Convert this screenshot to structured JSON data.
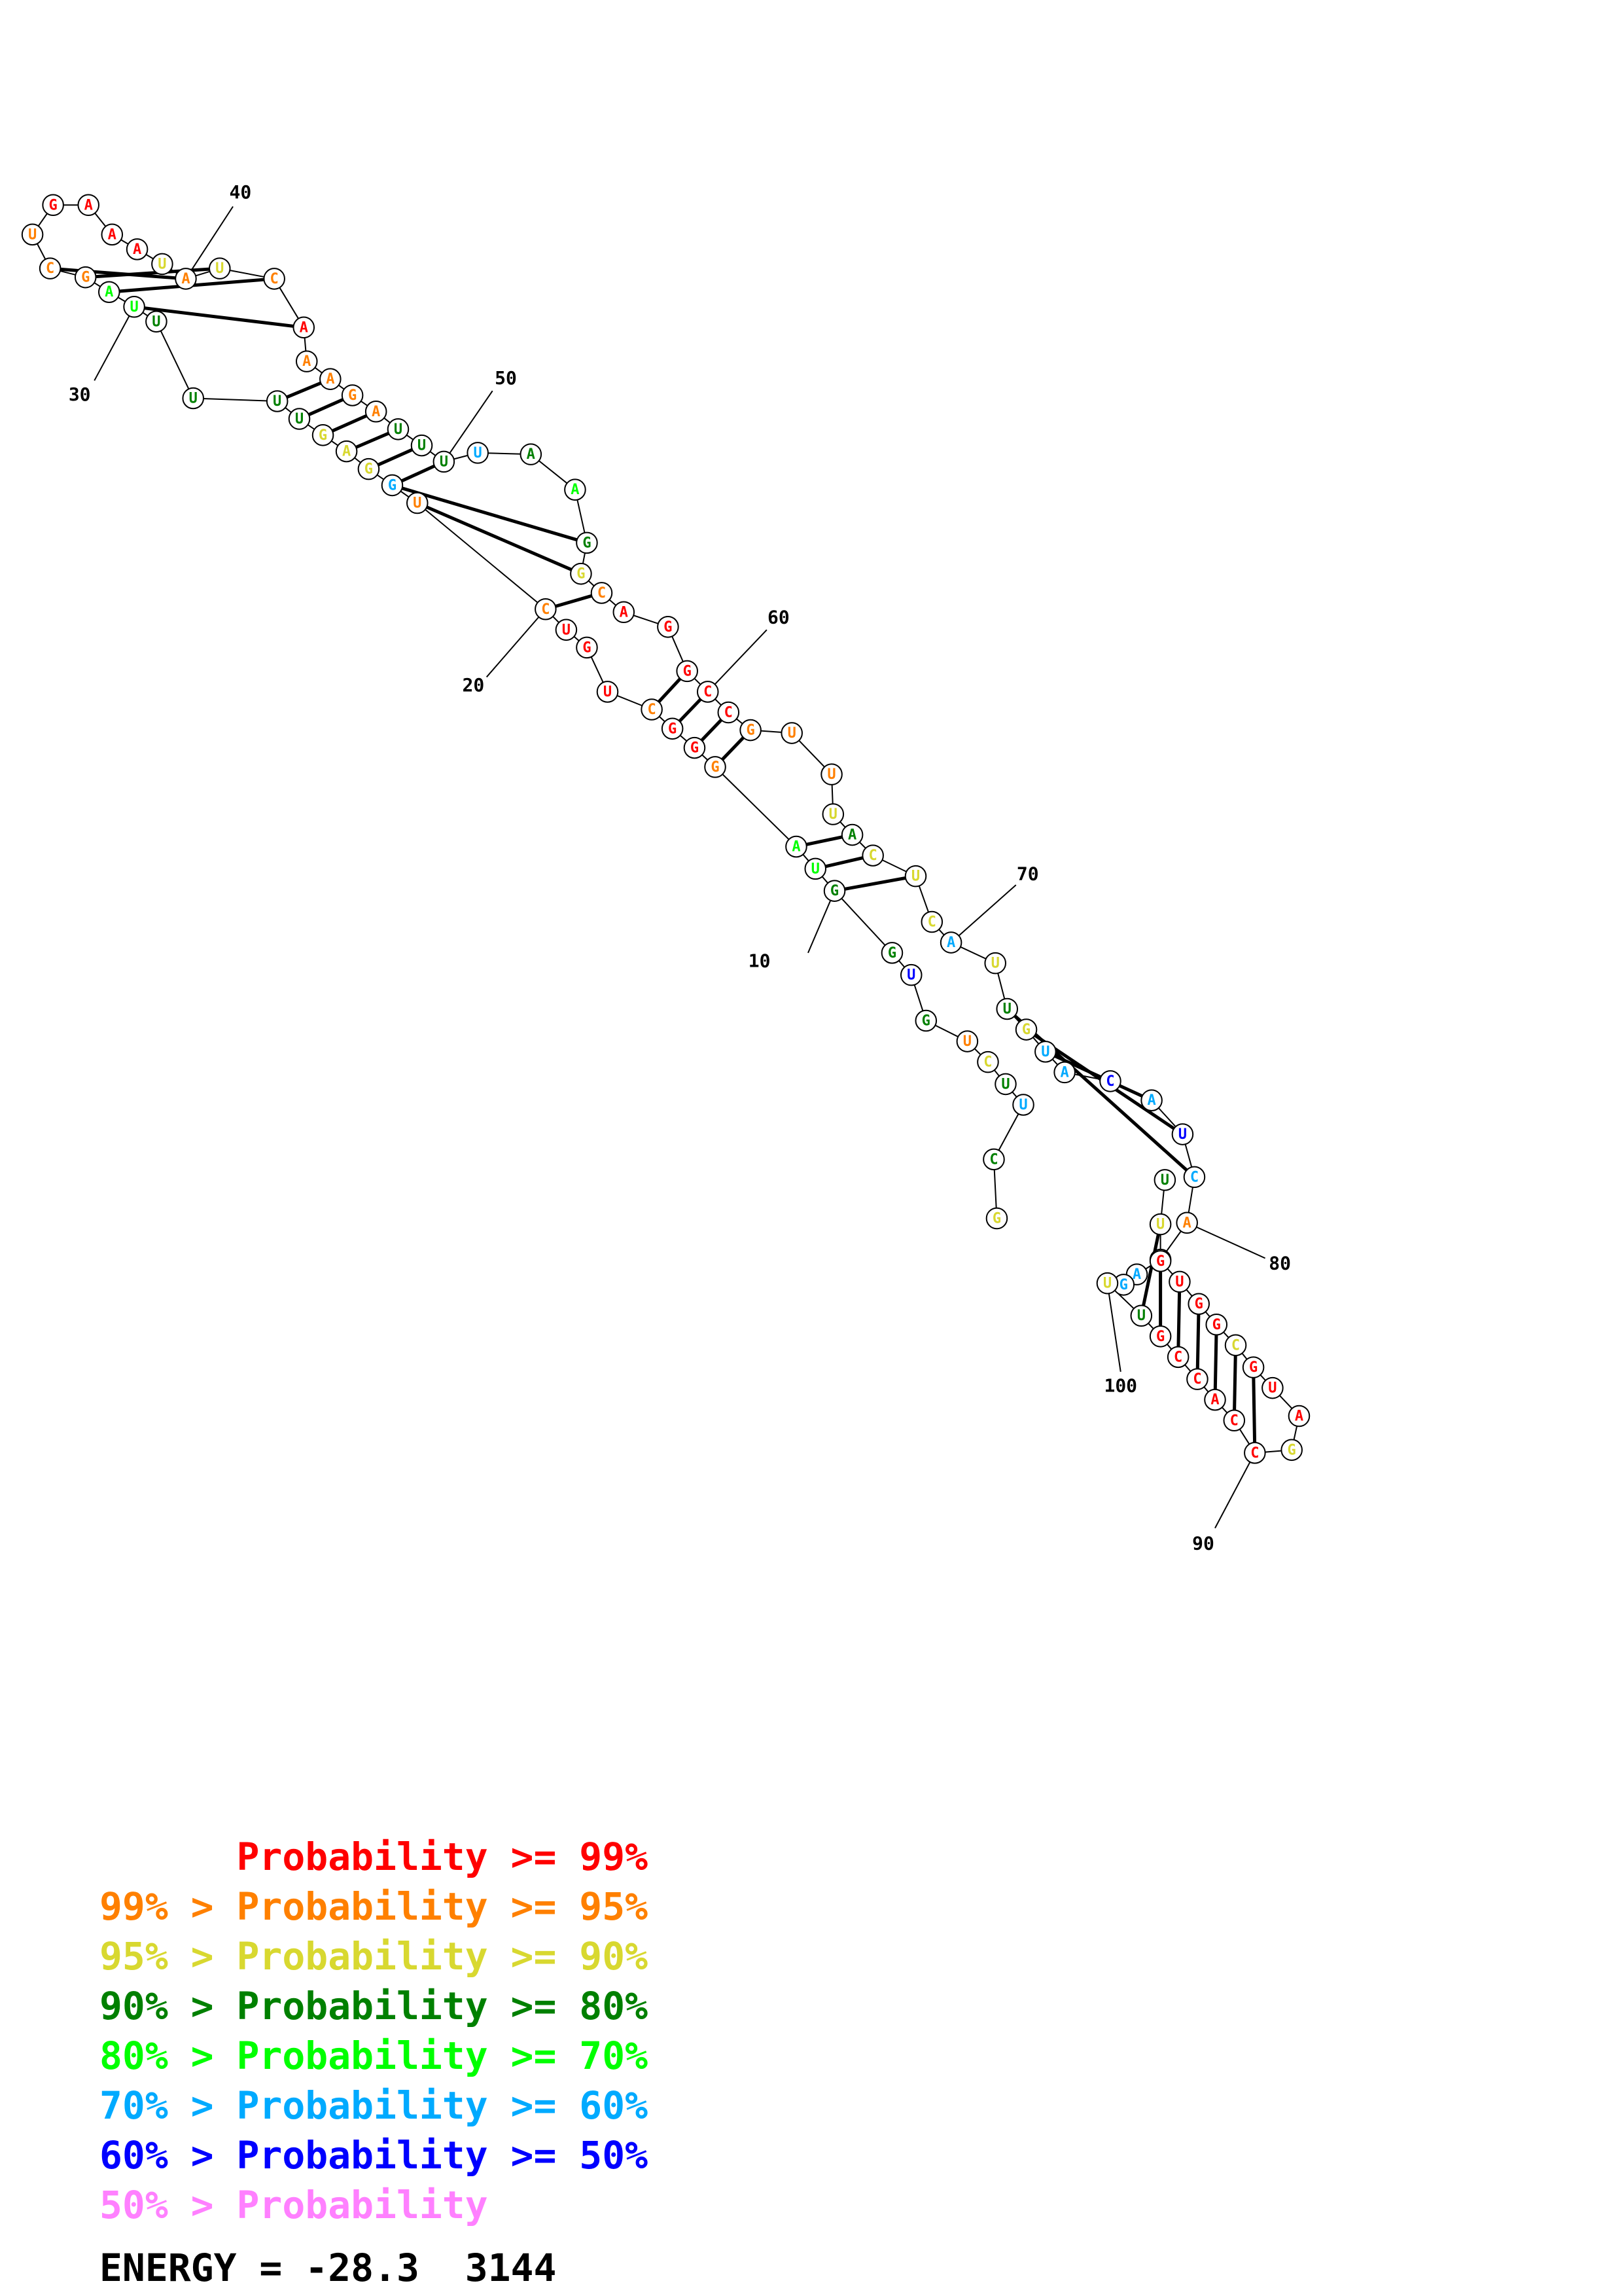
{
  "structure": {
    "sequence": "CGUUCUUGGUAGGGCUGUCUGGAGUUUUUAGCUGAAAUAUCAAAGAUUUUAAGGCAGGCCGUUUACUCAUUGUACAUCAAAGUUGCCACCGAUGCGGUGUUU",
    "length": 102,
    "position_labels": [
      "10",
      "20",
      "30",
      "40",
      "50",
      "60",
      "70",
      "80",
      "90",
      "100"
    ],
    "nucleotides": [
      {
        "n": 1,
        "base": "G",
        "prob_class": "90"
      },
      {
        "n": 2,
        "base": "C",
        "prob_class": "80"
      },
      {
        "n": 3,
        "base": "U",
        "prob_class": "60"
      },
      {
        "n": 4,
        "base": "U",
        "prob_class": "80"
      },
      {
        "n": 5,
        "base": "C",
        "prob_class": "90"
      },
      {
        "n": 6,
        "base": "U",
        "prob_class": "95"
      },
      {
        "n": 7,
        "base": "G",
        "prob_class": "80"
      },
      {
        "n": 8,
        "base": "U",
        "prob_class": "50"
      },
      {
        "n": 9,
        "base": "G",
        "prob_class": "80"
      },
      {
        "n": 10,
        "base": "G",
        "prob_class": "80"
      },
      {
        "n": 11,
        "base": "U",
        "prob_class": "70"
      },
      {
        "n": 12,
        "base": "A",
        "prob_class": "70"
      },
      {
        "n": 13,
        "base": "G",
        "prob_class": "95"
      },
      {
        "n": 14,
        "base": "G",
        "prob_class": "99"
      },
      {
        "n": 15,
        "base": "G",
        "prob_class": "99"
      },
      {
        "n": 16,
        "base": "C",
        "prob_class": "95"
      },
      {
        "n": 17,
        "base": "U",
        "prob_class": "99"
      },
      {
        "n": 18,
        "base": "G",
        "prob_class": "99"
      },
      {
        "n": 19,
        "base": "U",
        "prob_class": "99"
      },
      {
        "n": 20,
        "base": "C",
        "prob_class": "95"
      },
      {
        "n": 21,
        "base": "U",
        "prob_class": "95"
      },
      {
        "n": 22,
        "base": "G",
        "prob_class": "60"
      },
      {
        "n": 23,
        "base": "G",
        "prob_class": "90"
      },
      {
        "n": 24,
        "base": "A",
        "prob_class": "90"
      },
      {
        "n": 25,
        "base": "G",
        "prob_class": "90"
      },
      {
        "n": 26,
        "base": "U",
        "prob_class": "80"
      },
      {
        "n": 27,
        "base": "U",
        "prob_class": "80"
      },
      {
        "n": 28,
        "base": "U",
        "prob_class": "80"
      },
      {
        "n": 29,
        "base": "U",
        "prob_class": "80"
      },
      {
        "n": 30,
        "base": "U",
        "prob_class": "70"
      },
      {
        "n": 31,
        "base": "A",
        "prob_class": "70"
      },
      {
        "n": 32,
        "base": "G",
        "prob_class": "95"
      },
      {
        "n": 33,
        "base": "C",
        "prob_class": "95"
      },
      {
        "n": 34,
        "base": "U",
        "prob_class": "95"
      },
      {
        "n": 35,
        "base": "G",
        "prob_class": "99"
      },
      {
        "n": 36,
        "base": "A",
        "prob_class": "99"
      },
      {
        "n": 37,
        "base": "A",
        "prob_class": "99"
      },
      {
        "n": 38,
        "base": "A",
        "prob_class": "99"
      },
      {
        "n": 39,
        "base": "U",
        "prob_class": "90"
      },
      {
        "n": 40,
        "base": "A",
        "prob_class": "95"
      },
      {
        "n": 41,
        "base": "U",
        "prob_class": "90"
      },
      {
        "n": 42,
        "base": "C",
        "prob_class": "95"
      },
      {
        "n": 43,
        "base": "A",
        "prob_class": "99"
      },
      {
        "n": 44,
        "base": "A",
        "prob_class": "95"
      },
      {
        "n": 45,
        "base": "A",
        "prob_class": "95"
      },
      {
        "n": 46,
        "base": "G",
        "prob_class": "95"
      },
      {
        "n": 47,
        "base": "A",
        "prob_class": "95"
      },
      {
        "n": 48,
        "base": "U",
        "prob_class": "80"
      },
      {
        "n": 49,
        "base": "U",
        "prob_class": "80"
      },
      {
        "n": 50,
        "base": "U",
        "prob_class": "80"
      },
      {
        "n": 51,
        "base": "U",
        "prob_class": "60"
      },
      {
        "n": 52,
        "base": "A",
        "prob_class": "80"
      },
      {
        "n": 53,
        "base": "A",
        "prob_class": "70"
      },
      {
        "n": 54,
        "base": "G",
        "prob_class": "80"
      },
      {
        "n": 55,
        "base": "G",
        "prob_class": "90"
      },
      {
        "n": 56,
        "base": "C",
        "prob_class": "95"
      },
      {
        "n": 57,
        "base": "A",
        "prob_class": "99"
      },
      {
        "n": 58,
        "base": "G",
        "prob_class": "99"
      },
      {
        "n": 59,
        "base": "G",
        "prob_class": "99"
      },
      {
        "n": 60,
        "base": "C",
        "prob_class": "99"
      },
      {
        "n": 61,
        "base": "C",
        "prob_class": "99"
      },
      {
        "n": 62,
        "base": "G",
        "prob_class": "95"
      },
      {
        "n": 63,
        "base": "U",
        "prob_class": "95"
      },
      {
        "n": 64,
        "base": "U",
        "prob_class": "95"
      },
      {
        "n": 65,
        "base": "U",
        "prob_class": "90"
      },
      {
        "n": 66,
        "base": "A",
        "prob_class": "80"
      },
      {
        "n": 67,
        "base": "C",
        "prob_class": "90"
      },
      {
        "n": 68,
        "base": "U",
        "prob_class": "90"
      },
      {
        "n": 69,
        "base": "C",
        "prob_class": "90"
      },
      {
        "n": 70,
        "base": "A",
        "prob_class": "60"
      },
      {
        "n": 71,
        "base": "U",
        "prob_class": "90"
      },
      {
        "n": 72,
        "base": "U",
        "prob_class": "80"
      },
      {
        "n": 73,
        "base": "G",
        "prob_class": "90"
      },
      {
        "n": 74,
        "base": "U",
        "prob_class": "60"
      },
      {
        "n": 75,
        "base": "A",
        "prob_class": "60"
      },
      {
        "n": 76,
        "base": "C",
        "prob_class": "50"
      },
      {
        "n": 77,
        "base": "A",
        "prob_class": "60"
      },
      {
        "n": 78,
        "base": "U",
        "prob_class": "50"
      },
      {
        "n": 79,
        "base": "C",
        "prob_class": "60"
      },
      {
        "n": 80,
        "base": "A",
        "prob_class": "95"
      },
      {
        "n": 81,
        "base": "A",
        "prob_class": "70"
      },
      {
        "n": 82,
        "base": "A",
        "prob_class": "60"
      },
      {
        "n": 83,
        "base": "G",
        "prob_class": "60"
      },
      {
        "n": 84,
        "base": "U",
        "prob_class": "90"
      },
      {
        "n": 85,
        "base": "U",
        "prob_class": "80"
      },
      {
        "n": 86,
        "base": "G",
        "prob_class": "99"
      },
      {
        "n": 87,
        "base": "C",
        "prob_class": "99"
      },
      {
        "n": 88,
        "base": "C",
        "prob_class": "99"
      },
      {
        "n": 89,
        "base": "A",
        "prob_class": "99"
      },
      {
        "n": 90,
        "base": "C",
        "prob_class": "99"
      },
      {
        "n": 91,
        "base": "C",
        "prob_class": "99"
      },
      {
        "n": 92,
        "base": "G",
        "prob_class": "90"
      },
      {
        "n": 93,
        "base": "A",
        "prob_class": "99"
      },
      {
        "n": 94,
        "base": "U",
        "prob_class": "99"
      },
      {
        "n": 95,
        "base": "G",
        "prob_class": "99"
      },
      {
        "n": 96,
        "base": "C",
        "prob_class": "90"
      },
      {
        "n": 97,
        "base": "G",
        "prob_class": "99"
      },
      {
        "n": 98,
        "base": "G",
        "prob_class": "99"
      },
      {
        "n": 99,
        "base": "U",
        "prob_class": "99"
      },
      {
        "n": 100,
        "base": "G",
        "prob_class": "99"
      },
      {
        "n": 101,
        "base": "U",
        "prob_class": "90"
      },
      {
        "n": 102,
        "base": "U",
        "prob_class": "80"
      }
    ],
    "pairs": [
      [
        10,
        68
      ],
      [
        11,
        67
      ],
      [
        12,
        66
      ],
      [
        13,
        62
      ],
      [
        14,
        61
      ],
      [
        15,
        60
      ],
      [
        16,
        59
      ],
      [
        20,
        56
      ],
      [
        21,
        55
      ],
      [
        22,
        54
      ],
      [
        23,
        51
      ],
      [
        24,
        50
      ],
      [
        25,
        49
      ],
      [
        26,
        48
      ],
      [
        27,
        47
      ],
      [
        28,
        46
      ],
      [
        29,
        45
      ],
      [
        32,
        43
      ],
      [
        33,
        42
      ],
      [
        34,
        41
      ],
      [
        35,
        40
      ],
      [
        72,
        79
      ],
      [
        73,
        78
      ],
      [
        74,
        77
      ],
      [
        86,
        101
      ],
      [
        87,
        100
      ],
      [
        88,
        99
      ],
      [
        89,
        98
      ],
      [
        90,
        97
      ],
      [
        91,
        96
      ],
      [
        92,
        95
      ]
    ]
  },
  "colors": {
    "99": "#ff0000",
    "95": "#ff8000",
    "90": "#d8d830",
    "80": "#008000",
    "70": "#00ff00",
    "60": "#00aaff",
    "50": "#0000ff",
    "below50": "#ff80ff"
  },
  "legend": {
    "lines": [
      {
        "text": "      Probability >= 99%",
        "color": "#ff0000"
      },
      {
        "text": "99% > Probability >= 95%",
        "color": "#ff8000"
      },
      {
        "text": "95% > Probability >= 90%",
        "color": "#d8d830"
      },
      {
        "text": "90% > Probability >= 80%",
        "color": "#008000"
      },
      {
        "text": "80% > Probability >= 70%",
        "color": "#00ff00"
      },
      {
        "text": "70% > Probability >= 60%",
        "color": "#00aaff"
      },
      {
        "text": "60% > Probability >= 50%",
        "color": "#0000ff"
      },
      {
        "text": "50% > Probability",
        "color": "#ff80ff"
      }
    ],
    "energy": "ENERGY = -28.3  3144"
  }
}
